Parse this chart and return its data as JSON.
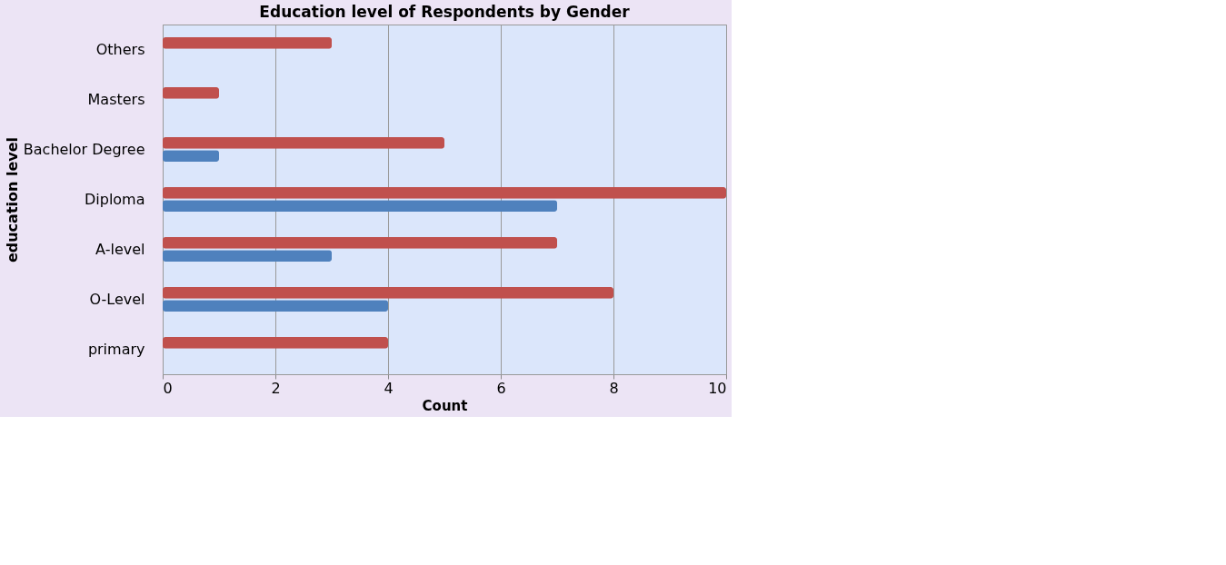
{
  "chart_data": {
    "type": "bar",
    "orientation": "horizontal",
    "title": "Education level of Respondents by Gender",
    "xlabel": "Count",
    "ylabel": "education level",
    "categories": [
      "Others",
      "Masters",
      "Bachelor Degree",
      "Diploma",
      "A-level",
      "O-Level",
      "primary"
    ],
    "series": [
      {
        "color": "#c0504d",
        "values": [
          3,
          1,
          5,
          10,
          7,
          8,
          4
        ]
      },
      {
        "color": "#4f81bd",
        "values": [
          0,
          0,
          1,
          7,
          3,
          4,
          0
        ]
      }
    ],
    "xlim": [
      0,
      10
    ],
    "xticks": [
      0,
      2,
      4,
      6,
      8,
      10
    ],
    "grid": "x"
  }
}
